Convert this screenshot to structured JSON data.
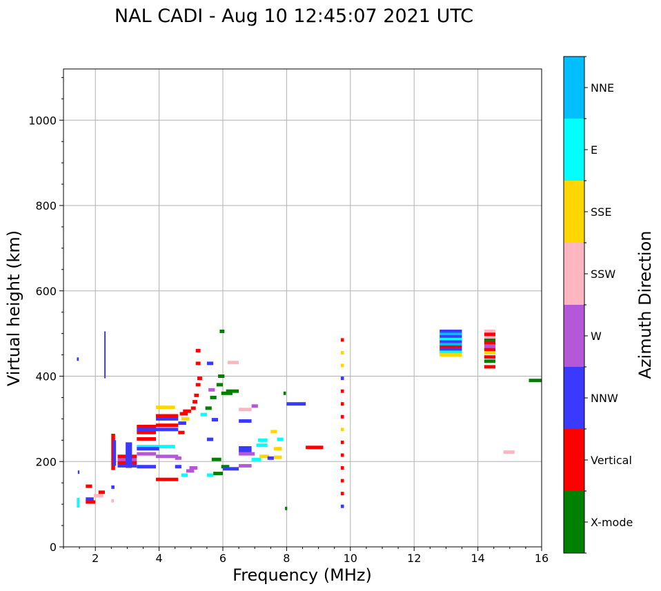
{
  "chart_data": {
    "type": "scatter",
    "title": "NAL CADI - Aug 10 12:45:07 2021 UTC",
    "xlabel": "Frequency (MHz)",
    "ylabel": "Virtual height (km)",
    "xlim": [
      1,
      16
    ],
    "ylim": [
      0,
      1120
    ],
    "xticks": [
      2,
      4,
      6,
      8,
      10,
      12,
      14,
      16
    ],
    "yticks": [
      0,
      200,
      400,
      600,
      800,
      1000
    ],
    "grid": true,
    "colorbar": {
      "label": "Azimuth Direction",
      "categories": [
        "X-mode",
        "Vertical",
        "NNW",
        "W",
        "SSW",
        "SSE",
        "E",
        "NNE"
      ],
      "colors": [
        "#008000",
        "#ff0000",
        "#3a3aff",
        "#b558d8",
        "#ffb6c1",
        "#ffd700",
        "#00ffff",
        "#00bfff"
      ]
    },
    "segments": [
      {
        "f0": 1.42,
        "f1": 1.48,
        "h": 440,
        "dir": "NNW"
      },
      {
        "f0": 2.28,
        "f1": 2.32,
        "h": 395,
        "h1": 505,
        "dir": "NNW"
      },
      {
        "f0": 1.45,
        "f1": 1.5,
        "h": 175,
        "dir": "NNW"
      },
      {
        "f0": 1.42,
        "f1": 1.5,
        "h": 92,
        "h1": 115,
        "dir": "E"
      },
      {
        "f0": 1.7,
        "f1": 1.9,
        "h": 142,
        "dir": "Vertical"
      },
      {
        "f0": 1.7,
        "f1": 1.95,
        "h": 112,
        "dir": "NNW"
      },
      {
        "f0": 1.7,
        "f1": 2.0,
        "h": 105,
        "dir": "Vertical"
      },
      {
        "f0": 1.95,
        "f1": 2.25,
        "h": 120,
        "dir": "SSW"
      },
      {
        "f0": 2.1,
        "f1": 2.3,
        "h": 128,
        "dir": "Vertical"
      },
      {
        "f0": 2.5,
        "f1": 2.6,
        "h": 140,
        "dir": "NNW"
      },
      {
        "f0": 2.5,
        "f1": 2.58,
        "h": 108,
        "dir": "SSW"
      },
      {
        "f0": 2.5,
        "f1": 2.62,
        "h": 180,
        "h1": 265,
        "dir": "Vertical"
      },
      {
        "f0": 2.55,
        "f1": 2.65,
        "h": 190,
        "h1": 250,
        "dir": "NNW"
      },
      {
        "f0": 2.7,
        "f1": 3.3,
        "h": 198,
        "dir": "Vertical"
      },
      {
        "f0": 2.7,
        "f1": 3.3,
        "h": 205,
        "dir": "W"
      },
      {
        "f0": 2.7,
        "f1": 3.3,
        "h": 212,
        "dir": "Vertical"
      },
      {
        "f0": 2.7,
        "f1": 3.3,
        "h": 190,
        "dir": "NNW"
      },
      {
        "f0": 2.95,
        "f1": 3.15,
        "h": 185,
        "h1": 245,
        "dir": "NNW"
      },
      {
        "f0": 3.3,
        "f1": 3.9,
        "h": 188,
        "dir": "NNW"
      },
      {
        "f0": 3.3,
        "f1": 3.9,
        "h": 218,
        "dir": "W"
      },
      {
        "f0": 3.3,
        "f1": 4.5,
        "h": 235,
        "dir": "E"
      },
      {
        "f0": 3.3,
        "f1": 4.0,
        "h": 230,
        "dir": "NNW"
      },
      {
        "f0": 3.3,
        "f1": 3.9,
        "h": 253,
        "dir": "Vertical"
      },
      {
        "f0": 3.3,
        "f1": 3.9,
        "h": 268,
        "dir": "Vertical"
      },
      {
        "f0": 3.3,
        "f1": 3.9,
        "h": 282,
        "dir": "Vertical"
      },
      {
        "f0": 3.3,
        "f1": 3.9,
        "h": 275,
        "dir": "NNW"
      },
      {
        "f0": 3.9,
        "f1": 4.6,
        "h": 158,
        "dir": "Vertical"
      },
      {
        "f0": 3.9,
        "f1": 4.6,
        "h": 212,
        "dir": "W"
      },
      {
        "f0": 3.9,
        "f1": 4.6,
        "h": 275,
        "dir": "NNW"
      },
      {
        "f0": 3.9,
        "f1": 4.6,
        "h": 285,
        "dir": "Vertical"
      },
      {
        "f0": 3.9,
        "f1": 4.6,
        "h": 300,
        "dir": "NNW"
      },
      {
        "f0": 3.9,
        "f1": 4.6,
        "h": 307,
        "dir": "Vertical"
      },
      {
        "f0": 3.9,
        "f1": 4.5,
        "h": 327,
        "dir": "SSE"
      },
      {
        "f0": 4.5,
        "f1": 4.7,
        "h": 188,
        "dir": "NNW"
      },
      {
        "f0": 4.5,
        "f1": 4.7,
        "h": 208,
        "dir": "W"
      },
      {
        "f0": 4.6,
        "f1": 4.8,
        "h": 268,
        "dir": "Vertical"
      },
      {
        "f0": 4.6,
        "f1": 4.85,
        "h": 290,
        "dir": "NNW"
      },
      {
        "f0": 4.65,
        "f1": 4.9,
        "h": 312,
        "dir": "Vertical"
      },
      {
        "f0": 4.7,
        "f1": 4.95,
        "h": 300,
        "dir": "SSE"
      },
      {
        "f0": 4.75,
        "f1": 5.0,
        "h": 318,
        "dir": "Vertical"
      },
      {
        "f0": 4.85,
        "f1": 5.1,
        "h": 178,
        "dir": "W"
      },
      {
        "f0": 4.95,
        "f1": 5.2,
        "h": 185,
        "dir": "W"
      },
      {
        "f0": 4.7,
        "f1": 4.9,
        "h": 168,
        "dir": "E"
      },
      {
        "f0": 5.0,
        "f1": 5.15,
        "h": 325,
        "dir": "Vertical"
      },
      {
        "f0": 5.05,
        "f1": 5.2,
        "h": 340,
        "dir": "Vertical"
      },
      {
        "f0": 5.1,
        "f1": 5.25,
        "h": 355,
        "dir": "Vertical"
      },
      {
        "f0": 5.15,
        "f1": 5.3,
        "h": 380,
        "dir": "Vertical"
      },
      {
        "f0": 5.2,
        "f1": 5.35,
        "h": 395,
        "dir": "Vertical"
      },
      {
        "f0": 5.15,
        "f1": 5.3,
        "h": 430,
        "dir": "Vertical"
      },
      {
        "f0": 5.15,
        "f1": 5.3,
        "h": 460,
        "dir": "Vertical"
      },
      {
        "f0": 5.3,
        "f1": 5.5,
        "h": 310,
        "dir": "E"
      },
      {
        "f0": 5.45,
        "f1": 5.65,
        "h": 325,
        "dir": "X-mode"
      },
      {
        "f0": 5.5,
        "f1": 5.7,
        "h": 430,
        "dir": "NNW"
      },
      {
        "f0": 5.55,
        "f1": 5.75,
        "h": 368,
        "dir": "W"
      },
      {
        "f0": 5.6,
        "f1": 5.8,
        "h": 350,
        "dir": "X-mode"
      },
      {
        "f0": 5.65,
        "f1": 5.85,
        "h": 298,
        "dir": "NNW"
      },
      {
        "f0": 5.5,
        "f1": 5.7,
        "h": 252,
        "dir": "NNW"
      },
      {
        "f0": 5.5,
        "f1": 5.7,
        "h": 168,
        "dir": "E"
      },
      {
        "f0": 5.65,
        "f1": 5.95,
        "h": 205,
        "dir": "X-mode"
      },
      {
        "f0": 5.7,
        "f1": 6.0,
        "h": 172,
        "dir": "X-mode"
      },
      {
        "f0": 5.8,
        "f1": 6.0,
        "h": 380,
        "dir": "X-mode"
      },
      {
        "f0": 5.85,
        "f1": 6.05,
        "h": 400,
        "dir": "X-mode"
      },
      {
        "f0": 5.9,
        "f1": 6.05,
        "h": 505,
        "dir": "X-mode"
      },
      {
        "f0": 5.95,
        "f1": 6.3,
        "h": 360,
        "dir": "X-mode"
      },
      {
        "f0": 6.1,
        "f1": 6.5,
        "h": 365,
        "dir": "X-mode"
      },
      {
        "f0": 5.95,
        "f1": 6.2,
        "h": 188,
        "dir": "X-mode"
      },
      {
        "f0": 6.0,
        "f1": 6.5,
        "h": 183,
        "dir": "NNW"
      },
      {
        "f0": 6.15,
        "f1": 6.5,
        "h": 432,
        "dir": "SSW"
      },
      {
        "f0": 6.5,
        "f1": 6.9,
        "h": 190,
        "dir": "W"
      },
      {
        "f0": 6.5,
        "f1": 6.9,
        "h": 225,
        "dir": "NNW"
      },
      {
        "f0": 6.5,
        "f1": 6.9,
        "h": 232,
        "dir": "NNW"
      },
      {
        "f0": 6.5,
        "f1": 6.9,
        "h": 295,
        "dir": "NNW"
      },
      {
        "f0": 6.5,
        "f1": 6.9,
        "h": 322,
        "dir": "SSW"
      },
      {
        "f0": 6.5,
        "f1": 7.0,
        "h": 218,
        "dir": "W"
      },
      {
        "f0": 6.9,
        "f1": 7.1,
        "h": 330,
        "dir": "W"
      },
      {
        "f0": 6.9,
        "f1": 7.2,
        "h": 205,
        "dir": "E"
      },
      {
        "f0": 7.05,
        "f1": 7.4,
        "h": 238,
        "dir": "E"
      },
      {
        "f0": 7.1,
        "f1": 7.4,
        "h": 250,
        "dir": "E"
      },
      {
        "f0": 7.15,
        "f1": 7.45,
        "h": 212,
        "dir": "SSE"
      },
      {
        "f0": 7.4,
        "f1": 7.6,
        "h": 208,
        "dir": "NNW"
      },
      {
        "f0": 7.5,
        "f1": 7.7,
        "h": 270,
        "dir": "SSE"
      },
      {
        "f0": 7.6,
        "f1": 7.85,
        "h": 230,
        "dir": "SSE"
      },
      {
        "f0": 7.6,
        "f1": 7.85,
        "h": 210,
        "dir": "SSE"
      },
      {
        "f0": 7.7,
        "f1": 7.9,
        "h": 252,
        "dir": "E"
      },
      {
        "f0": 7.9,
        "f1": 7.98,
        "h": 360,
        "dir": "X-mode"
      },
      {
        "f0": 7.95,
        "f1": 8.02,
        "h": 90,
        "dir": "X-mode"
      },
      {
        "f0": 8.0,
        "f1": 8.6,
        "h": 335,
        "dir": "NNW"
      },
      {
        "f0": 8.6,
        "f1": 9.15,
        "h": 233,
        "dir": "Vertical"
      },
      {
        "f0": 9.7,
        "f1": 9.8,
        "h": 485,
        "dir": "Vertical"
      },
      {
        "f0": 9.7,
        "f1": 9.8,
        "h": 455,
        "dir": "SSE"
      },
      {
        "f0": 9.7,
        "f1": 9.8,
        "h": 425,
        "dir": "SSE"
      },
      {
        "f0": 9.7,
        "f1": 9.8,
        "h": 395,
        "dir": "NNW"
      },
      {
        "f0": 9.7,
        "f1": 9.8,
        "h": 365,
        "dir": "Vertical"
      },
      {
        "f0": 9.7,
        "f1": 9.8,
        "h": 335,
        "dir": "Vertical"
      },
      {
        "f0": 9.7,
        "f1": 9.8,
        "h": 305,
        "dir": "Vertical"
      },
      {
        "f0": 9.7,
        "f1": 9.8,
        "h": 275,
        "dir": "SSE"
      },
      {
        "f0": 9.7,
        "f1": 9.8,
        "h": 245,
        "dir": "Vertical"
      },
      {
        "f0": 9.7,
        "f1": 9.8,
        "h": 215,
        "dir": "Vertical"
      },
      {
        "f0": 9.7,
        "f1": 9.8,
        "h": 185,
        "dir": "Vertical"
      },
      {
        "f0": 9.7,
        "f1": 9.8,
        "h": 155,
        "dir": "Vertical"
      },
      {
        "f0": 9.7,
        "f1": 9.8,
        "h": 125,
        "dir": "Vertical"
      },
      {
        "f0": 9.7,
        "f1": 9.8,
        "h": 95,
        "dir": "NNW"
      },
      {
        "f0": 12.8,
        "f1": 13.5,
        "h": 505,
        "dir": "NNW"
      },
      {
        "f0": 12.8,
        "f1": 13.5,
        "h": 498,
        "dir": "NNE"
      },
      {
        "f0": 12.8,
        "f1": 13.5,
        "h": 492,
        "dir": "NNW"
      },
      {
        "f0": 12.8,
        "f1": 13.5,
        "h": 486,
        "dir": "E"
      },
      {
        "f0": 12.8,
        "f1": 13.5,
        "h": 480,
        "dir": "NNW"
      },
      {
        "f0": 12.8,
        "f1": 13.5,
        "h": 474,
        "dir": "NNE"
      },
      {
        "f0": 12.8,
        "f1": 13.5,
        "h": 468,
        "dir": "Vertical"
      },
      {
        "f0": 12.8,
        "f1": 13.5,
        "h": 462,
        "dir": "NNW"
      },
      {
        "f0": 12.8,
        "f1": 13.5,
        "h": 456,
        "dir": "E"
      },
      {
        "f0": 12.8,
        "f1": 13.5,
        "h": 450,
        "dir": "SSE"
      },
      {
        "f0": 14.2,
        "f1": 14.55,
        "h": 505,
        "dir": "SSW"
      },
      {
        "f0": 14.2,
        "f1": 14.55,
        "h": 498,
        "dir": "Vertical"
      },
      {
        "f0": 14.2,
        "f1": 14.55,
        "h": 490,
        "dir": "SSW"
      },
      {
        "f0": 14.2,
        "f1": 14.55,
        "h": 484,
        "dir": "X-mode"
      },
      {
        "f0": 14.2,
        "f1": 14.55,
        "h": 478,
        "dir": "Vertical"
      },
      {
        "f0": 14.2,
        "f1": 14.55,
        "h": 470,
        "dir": "W"
      },
      {
        "f0": 14.2,
        "f1": 14.55,
        "h": 462,
        "dir": "Vertical"
      },
      {
        "f0": 14.2,
        "f1": 14.55,
        "h": 455,
        "dir": "SSE"
      },
      {
        "f0": 14.2,
        "f1": 14.55,
        "h": 445,
        "dir": "Vertical"
      },
      {
        "f0": 14.2,
        "f1": 14.55,
        "h": 435,
        "dir": "X-mode"
      },
      {
        "f0": 14.2,
        "f1": 14.55,
        "h": 422,
        "dir": "Vertical"
      },
      {
        "f0": 14.8,
        "f1": 15.15,
        "h": 222,
        "dir": "SSW"
      },
      {
        "f0": 15.6,
        "f1": 16.0,
        "h": 390,
        "dir": "X-mode"
      }
    ]
  }
}
